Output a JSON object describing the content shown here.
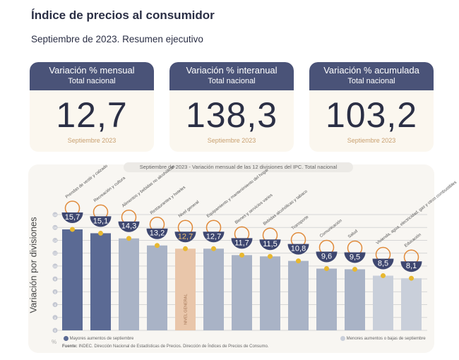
{
  "header": {
    "title": "Índice de precios al consumidor",
    "subtitle": "Septiembre de 2023. Resumen ejecutivo"
  },
  "cards": [
    {
      "title": "Variación % mensual",
      "scope": "Total nacional",
      "value": "12,7",
      "period": "Septiembre 2023"
    },
    {
      "title": "Variación % interanual",
      "scope": "Total nacional",
      "value": "138,3",
      "period": "Septiembre 2023"
    },
    {
      "title": "Variación % acumulada",
      "scope": "Total nacional",
      "value": "103,2",
      "period": "Septiembre 2023"
    }
  ],
  "chart_data": {
    "type": "bar",
    "title": "Septiembre de 2023 - Variación mensual de las 12 divisiones del IPC. Total nacional",
    "ylabel": "Variación por divisiones",
    "yunit": "%",
    "ylim": [
      0,
      18
    ],
    "yticks": [
      0,
      2,
      4,
      6,
      8,
      10,
      12,
      14,
      16,
      18
    ],
    "categories": [
      "Prendas de vestir y calzado",
      "Recreación y cultura",
      "Alimentos y bebidas no alcohólicas",
      "Restaurantes y hoteles",
      "Nivel general",
      "Equipamiento y mantenimiento del hogar",
      "Bienes y servicios varios",
      "Bebidas alcohólicas y tabaco",
      "Transporte",
      "Comunicación",
      "Salud",
      "Vivienda, agua, electricidad, gas y otros combustibles",
      "Educación"
    ],
    "values": [
      15.7,
      15.1,
      14.3,
      13.2,
      12.7,
      12.7,
      11.7,
      11.5,
      10.8,
      9.6,
      9.5,
      8.5,
      8.1
    ],
    "value_labels": [
      "15,7",
      "15,1",
      "14,3",
      "13,2",
      "12,7",
      "12,7",
      "11,7",
      "11,5",
      "10,8",
      "9,6",
      "9,5",
      "8,5",
      "8,1"
    ],
    "groups": [
      "mayor",
      "mayor",
      "medio",
      "medio",
      "general",
      "medio",
      "medio",
      "medio",
      "medio",
      "medio",
      "medio",
      "menor",
      "menor"
    ],
    "general_label": "NIVEL GENERAL",
    "legend": {
      "high": "Mayores aumentos de septiembre",
      "low": "Menores aumentos o bajas de septiembre"
    },
    "source_bold": "Fuente:",
    "source": "INDEC. Dirección Nacional de Estadísticas de Precios. Dirección de Índices de Precios de Consumo.",
    "colors": {
      "mayor": "#5b6a94",
      "medio": "#a9b3c6",
      "menor": "#c9cfda",
      "general": "#e9c6aa",
      "bowl": "#3e4770",
      "dot": "#e8b830",
      "grid": "#d6d6d6"
    }
  }
}
